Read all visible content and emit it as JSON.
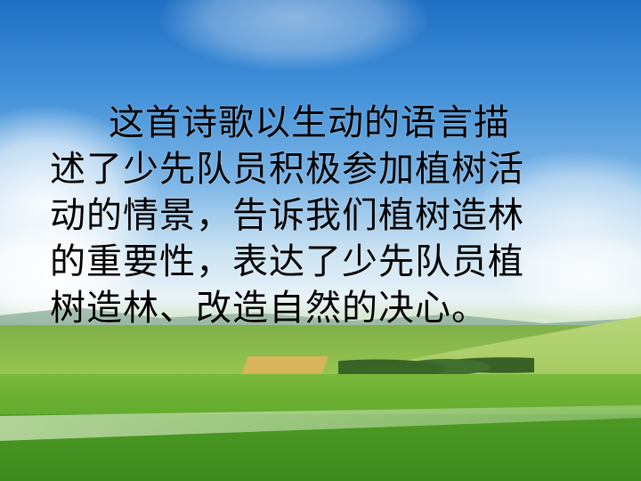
{
  "slide": {
    "paragraph_lines": [
      "这首诗歌以生动的语言描",
      "述了少先队员积极参加植树活",
      "动的情景，告诉我们植树造林",
      "的重要性，表达了少先队员植",
      "树造林、改造自然的决心。"
    ]
  },
  "colors": {
    "text": "#000000",
    "sky_top": "#1f6fc4",
    "field_green": "#4e9a25"
  }
}
